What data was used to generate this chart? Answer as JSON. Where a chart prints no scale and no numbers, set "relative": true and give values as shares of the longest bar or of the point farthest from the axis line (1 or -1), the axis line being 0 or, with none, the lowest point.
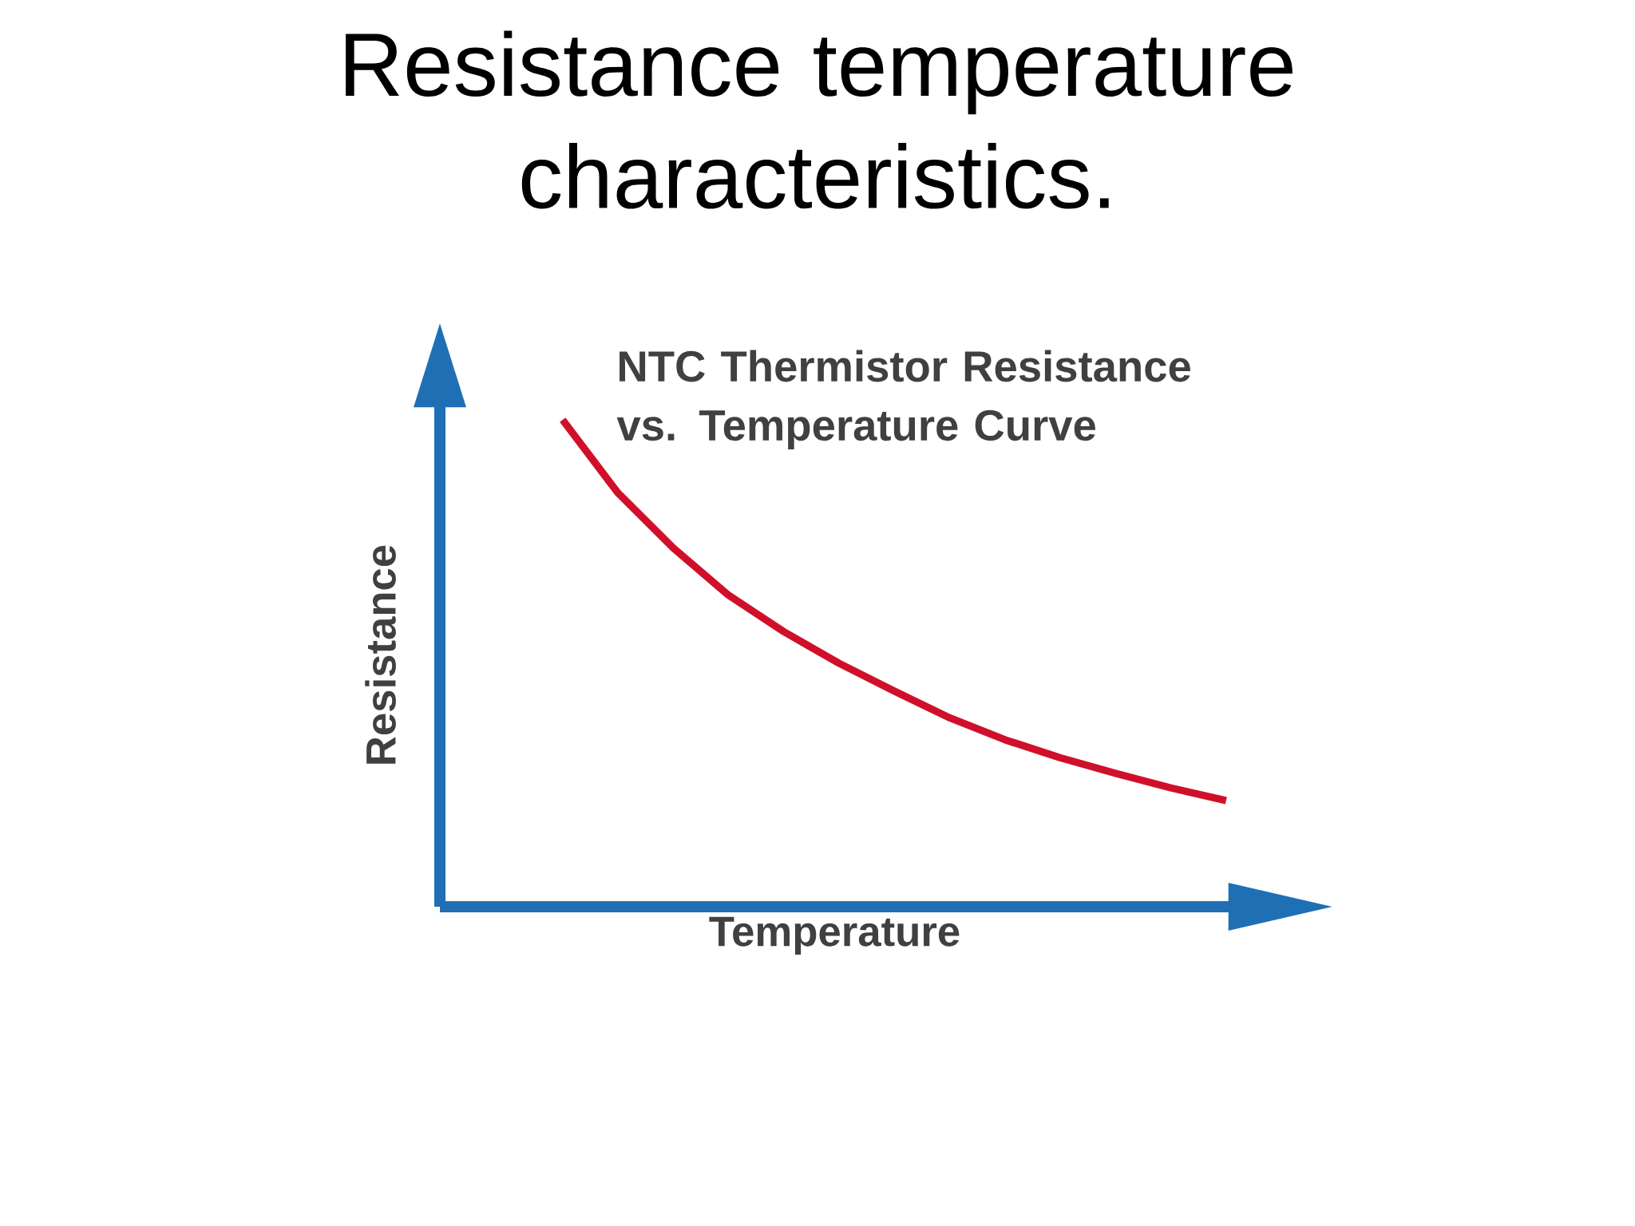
{
  "chart_data": {
    "type": "line",
    "title": "Resistance temperature characteristics.",
    "xlabel": "Temperature",
    "ylabel": "Resistance",
    "annotations": [
      "NTC Thermistor Resistance vs. Temperature Curve"
    ],
    "categories": [
      null,
      null,
      null,
      null,
      null,
      null,
      null,
      null,
      null,
      null,
      null,
      null,
      null
    ],
    "relative": true,
    "series": [
      {
        "color": "#d0102a",
        "values": [
          1.0,
          0.85,
          0.737,
          0.64,
          0.565,
          0.5,
          0.443,
          0.388,
          0.343,
          0.306,
          0.274,
          0.244,
          0.218
        ]
      }
    ]
  }
}
